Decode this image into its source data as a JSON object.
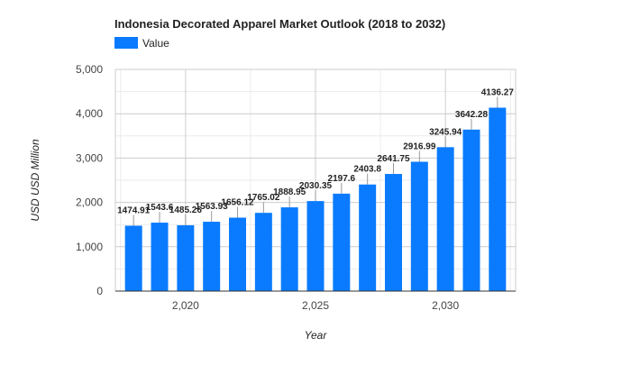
{
  "chart_data": {
    "type": "bar",
    "title": "Indonesia Decorated Apparel Market Outlook (2018 to 2032)",
    "xlabel": "Year",
    "ylabel": "USD USD Million",
    "legend": {
      "position": "top-left",
      "entries": [
        "Value"
      ]
    },
    "series": [
      {
        "name": "Value",
        "color": "#0a7bff",
        "x": [
          2018,
          2019,
          2020,
          2021,
          2022,
          2023,
          2024,
          2025,
          2026,
          2027,
          2028,
          2029,
          2030,
          2031,
          2032
        ],
        "values": [
          1474.91,
          1543.6,
          1485.26,
          1563.93,
          1656.12,
          1765.02,
          1888.95,
          2030.35,
          2197.6,
          2403.8,
          2641.75,
          2916.99,
          3245.94,
          3642.28,
          4136.27
        ],
        "labels": [
          "1474.91",
          "1543.6",
          "1485.26",
          "1563.93",
          "1656.12",
          "1765.02",
          "1888.95",
          "2030.35",
          "2197.6",
          "2403.8",
          "2641.75",
          "2916.99",
          "3245.94",
          "3642.28",
          "4136.27"
        ]
      }
    ],
    "xlim": [
      2017.3,
      2032.7
    ],
    "ylim": [
      0,
      5000
    ],
    "x_ticks": [
      2020,
      2025,
      2030
    ],
    "x_tick_labels": [
      "2,020",
      "2,025",
      "2,030"
    ],
    "y_ticks": [
      0,
      1000,
      2000,
      3000,
      4000,
      5000
    ],
    "y_tick_labels": [
      "0",
      "1,000",
      "2,000",
      "3,000",
      "4,000",
      "5,000"
    ],
    "grid": true
  }
}
